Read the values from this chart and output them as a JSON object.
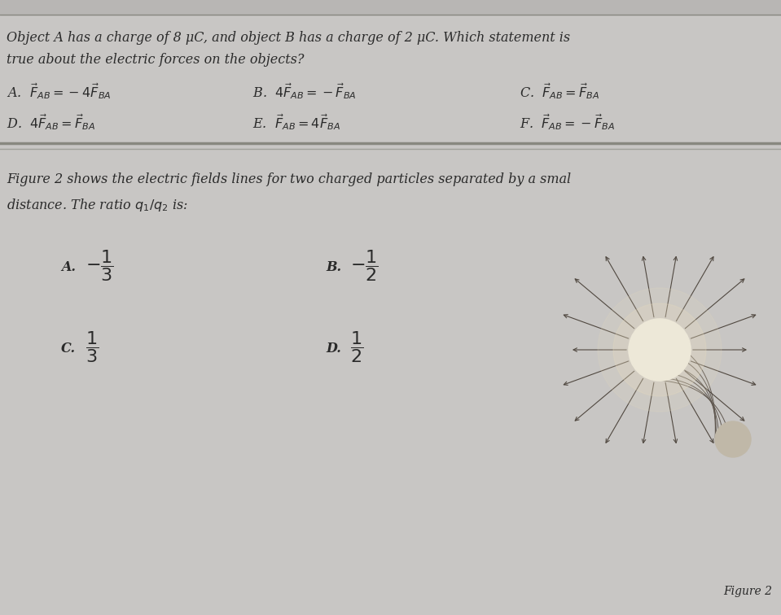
{
  "bg_color": "#c8c6c4",
  "text_color": "#2a2a2a",
  "title_line1": "Object A has a charge of 8 μC, and object B has a charge of 2 μC. Which statement is",
  "title_line2": "true about the electric forces on the objects?",
  "opt_A": "A.  $\\vec{F}_{AB} = -4\\vec{F}_{BA}$",
  "opt_B": "B.  $4\\vec{F}_{AB} = -\\vec{F}_{BA}$",
  "opt_C": "C.  $\\vec{F}_{AB} = \\vec{F}_{BA}$",
  "opt_D": "D.  $4\\vec{F}_{AB} = \\vec{F}_{BA}$",
  "opt_E": "E.  $\\vec{F}_{AB} = 4\\vec{F}_{BA}$",
  "opt_F": "F.  $\\vec{F}_{AB} = -\\vec{F}_{BA}$",
  "q2_line1": "Figure 2 shows the electric fields lines for two charged particles separated by a smal",
  "q2_line2": "distance. The ratio $q_1/q_2$ is:",
  "q2_A_label": "A.",
  "q2_A_val": "$-\\dfrac{1}{3}$",
  "q2_B_label": "B.",
  "q2_B_val": "$-\\dfrac{1}{2}$",
  "q2_C_label": "C.",
  "q2_C_val": "$\\dfrac{1}{3}$",
  "q2_D_label": "D.",
  "q2_D_val": "$\\dfrac{1}{2}$",
  "figure_label": "Figure 2",
  "line_color": "#888880",
  "top_stripe_color": "#b8b6b4"
}
